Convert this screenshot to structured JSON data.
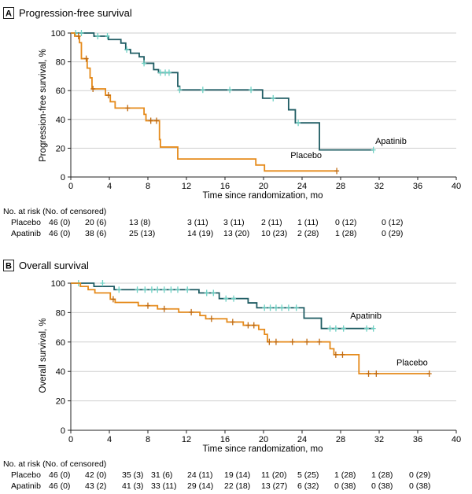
{
  "colors": {
    "apatinib": "#1f5c63",
    "placebo": "#e58a1a",
    "censor_apatinib": "#6fd1c4",
    "censor_placebo": "#c06a10",
    "grid": "#cfcfcf"
  },
  "chart_data": [
    {
      "type": "line",
      "panel_letter": "A",
      "title": "Progression-free survival",
      "xlabel": "Time since randomization, mo",
      "ylabel": "Progression-free survival, %",
      "xlim": [
        0,
        40
      ],
      "ylim": [
        0,
        100
      ],
      "x_ticks": [
        0,
        4,
        8,
        12,
        16,
        20,
        24,
        28,
        32,
        36,
        40
      ],
      "y_ticks": [
        0,
        20,
        40,
        60,
        80,
        100
      ],
      "grid": true,
      "series": [
        {
          "name": "Apatinib",
          "color_key": "apatinib",
          "censor_color_key": "censor_apatinib",
          "steps": [
            [
              0,
              100
            ],
            [
              2.4,
              97.8
            ],
            [
              3.9,
              95.5
            ],
            [
              5.2,
              93
            ],
            [
              5.7,
              88.5
            ],
            [
              6.2,
              86
            ],
            [
              7.1,
              83.5
            ],
            [
              7.6,
              79
            ],
            [
              8.6,
              74.6
            ],
            [
              9.1,
              72.5
            ],
            [
              11.1,
              63
            ],
            [
              11.3,
              60.5
            ],
            [
              19.9,
              54.7
            ],
            [
              22.6,
              46.7
            ],
            [
              23.3,
              37.6
            ],
            [
              25.8,
              18.8
            ],
            [
              31.4,
              18.8
            ]
          ],
          "censored": [
            [
              0.5,
              100
            ],
            [
              1.1,
              100
            ],
            [
              2.8,
              97.8
            ],
            [
              3.8,
              97.8
            ],
            [
              5.8,
              88.5
            ],
            [
              7.6,
              79
            ],
            [
              9.3,
              72.5
            ],
            [
              9.8,
              72.5
            ],
            [
              10.2,
              72.5
            ],
            [
              11.3,
              60.5
            ],
            [
              13.7,
              60.5
            ],
            [
              16.5,
              60.5
            ],
            [
              18.7,
              60.5
            ],
            [
              21,
              54.7
            ],
            [
              23.6,
              37.6
            ],
            [
              31.4,
              18.8
            ]
          ],
          "label_x": 31.6,
          "label_y": 23
        },
        {
          "name": "Placebo",
          "color_key": "placebo",
          "censor_color_key": "censor_placebo",
          "steps": [
            [
              0,
              100
            ],
            [
              0.4,
              97.8
            ],
            [
              0.9,
              93.3
            ],
            [
              1.1,
              82.2
            ],
            [
              1.7,
              75.6
            ],
            [
              2,
              68.9
            ],
            [
              2.2,
              61.2
            ],
            [
              3.6,
              56.8
            ],
            [
              4.1,
              52.3
            ],
            [
              4.6,
              47.9
            ],
            [
              7.6,
              43.5
            ],
            [
              7.8,
              39.1
            ],
            [
              9.2,
              26
            ],
            [
              9.3,
              20.8
            ],
            [
              11.1,
              12.5
            ],
            [
              19.2,
              8.3
            ],
            [
              20.1,
              4.2
            ],
            [
              27.6,
              4.2
            ]
          ],
          "censored": [
            [
              0.8,
              97.8
            ],
            [
              1.6,
              82.2
            ],
            [
              2.3,
              61.2
            ],
            [
              3.9,
              56.8
            ],
            [
              5.9,
              47.9
            ],
            [
              8.3,
              39.1
            ],
            [
              8.9,
              39.1
            ],
            [
              27.6,
              4.2
            ]
          ],
          "label_x": 22.8,
          "label_y": 13
        }
      ],
      "risk_table": {
        "header": "No. at risk (No. of censored)",
        "rows": [
          {
            "label": "Placebo",
            "cells": [
              "46 (0)",
              "20 (6)",
              "13 (8)",
              "3 (11)",
              "3 (11)",
              "2 (11)",
              "1 (11)",
              "0 (12)",
              "0 (12)"
            ]
          },
          {
            "label": "Apatinib",
            "cells": [
              "46 (0)",
              "38 (6)",
              "25 (13)",
              "14 (19)",
              "13 (20)",
              "10 (23)",
              "2 (28)",
              "1 (28)",
              "0 (29)"
            ]
          }
        ]
      }
    },
    {
      "type": "line",
      "panel_letter": "B",
      "title": "Overall survival",
      "xlabel": "Time since randomization, mo",
      "ylabel": "Overall survival, %",
      "xlim": [
        0,
        40
      ],
      "ylim": [
        0,
        100
      ],
      "x_ticks": [
        0,
        4,
        8,
        12,
        16,
        20,
        24,
        28,
        32,
        36,
        40
      ],
      "y_ticks": [
        0,
        20,
        40,
        60,
        80,
        100
      ],
      "grid": true,
      "series": [
        {
          "name": "Apatinib",
          "color_key": "apatinib",
          "censor_color_key": "censor_apatinib",
          "steps": [
            [
              0,
              100
            ],
            [
              2.4,
              97.8
            ],
            [
              4.5,
              95.6
            ],
            [
              13.3,
              93.4
            ],
            [
              15.4,
              89.5
            ],
            [
              18.4,
              86.6
            ],
            [
              19.3,
              83.3
            ],
            [
              24.2,
              76.2
            ],
            [
              26,
              69.2
            ],
            [
              31.4,
              69.2
            ]
          ],
          "censored": [
            [
              0.8,
              100
            ],
            [
              3.3,
              100
            ],
            [
              5,
              95.6
            ],
            [
              6.9,
              95.6
            ],
            [
              7.7,
              95.6
            ],
            [
              8.4,
              95.6
            ],
            [
              9,
              95.6
            ],
            [
              9.7,
              95.6
            ],
            [
              10.4,
              95.6
            ],
            [
              11.1,
              95.6
            ],
            [
              12.1,
              95.6
            ],
            [
              14.1,
              93.4
            ],
            [
              14.8,
              93.4
            ],
            [
              16.1,
              89.5
            ],
            [
              16.9,
              89.5
            ],
            [
              20.1,
              83.3
            ],
            [
              20.7,
              83.3
            ],
            [
              21.3,
              83.3
            ],
            [
              21.9,
              83.3
            ],
            [
              22.6,
              83.3
            ],
            [
              23.4,
              83.3
            ],
            [
              26.9,
              69.2
            ],
            [
              27.5,
              69.2
            ],
            [
              28.3,
              69.2
            ],
            [
              30.7,
              69.2
            ],
            [
              31.4,
              69.2
            ]
          ],
          "label_x": 29,
          "label_y": 76
        },
        {
          "name": "Placebo",
          "color_key": "placebo",
          "censor_color_key": "censor_placebo",
          "steps": [
            [
              0,
              100
            ],
            [
              1,
              97.8
            ],
            [
              1.8,
              95.6
            ],
            [
              2.5,
              93.4
            ],
            [
              4.1,
              89.1
            ],
            [
              4.6,
              86.9
            ],
            [
              7,
              84.7
            ],
            [
              9,
              82.5
            ],
            [
              11.2,
              80.3
            ],
            [
              13.4,
              78
            ],
            [
              14,
              75.8
            ],
            [
              16.2,
              73.6
            ],
            [
              17.9,
              71.4
            ],
            [
              19.5,
              68.6
            ],
            [
              20.1,
              65.2
            ],
            [
              20.4,
              60.1
            ],
            [
              23.7,
              60.1
            ],
            [
              26.9,
              55.4
            ],
            [
              27.3,
              51.4
            ],
            [
              29.9,
              38.5
            ],
            [
              37.2,
              38.5
            ]
          ],
          "censored": [
            [
              4.4,
              89.1
            ],
            [
              8,
              84.7
            ],
            [
              9.7,
              82.5
            ],
            [
              12.5,
              80.3
            ],
            [
              14.6,
              75.8
            ],
            [
              16.8,
              73.6
            ],
            [
              18.4,
              71.4
            ],
            [
              19,
              71.4
            ],
            [
              20.6,
              60.1
            ],
            [
              21.3,
              60.1
            ],
            [
              23,
              60.1
            ],
            [
              24.5,
              60.1
            ],
            [
              25.8,
              60.1
            ],
            [
              27.5,
              51.4
            ],
            [
              28.2,
              51.4
            ],
            [
              30.9,
              38.5
            ],
            [
              31.7,
              38.5
            ],
            [
              37.2,
              38.5
            ]
          ],
          "label_x": 33.8,
          "label_y": 44
        }
      ],
      "risk_table": {
        "header": "No. at risk (No. of censored)",
        "rows": [
          {
            "label": "Placebo",
            "cells": [
              "46 (0)",
              "42 (0)",
              "35 (3)",
              "31 (6)",
              "24 (11)",
              "19 (14)",
              "11 (20)",
              "5 (25)",
              "1 (28)",
              "1 (28)",
              "0 (29)"
            ]
          },
          {
            "label": "Apatinib",
            "cells": [
              "46 (0)",
              "43 (2)",
              "41 (3)",
              "33 (11)",
              "29 (14)",
              "22 (18)",
              "13 (27)",
              "6 (32)",
              "0 (38)",
              "0 (38)",
              "0 (38)"
            ]
          }
        ]
      }
    }
  ]
}
